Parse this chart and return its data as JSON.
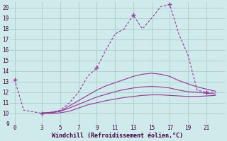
{
  "xlabel": "Windchill (Refroidissement éolien,°C)",
  "bg_color": "#ceeaea",
  "grid_color": "#aacccc",
  "line_color": "#993399",
  "xlim": [
    -0.5,
    23
  ],
  "ylim": [
    9,
    20.5
  ],
  "xticks": [
    0,
    3,
    5,
    7,
    9,
    11,
    13,
    15,
    17,
    19,
    21
  ],
  "yticks": [
    9,
    10,
    11,
    12,
    13,
    14,
    15,
    16,
    17,
    18,
    19,
    20
  ],
  "line1_x": [
    0,
    1,
    3,
    4,
    5,
    6,
    7,
    8,
    9,
    10,
    11,
    12,
    13,
    14,
    15,
    16,
    17,
    18,
    19,
    20,
    21,
    22
  ],
  "line1_y": [
    13.2,
    10.3,
    10.0,
    10.1,
    10.3,
    11.0,
    12.0,
    13.5,
    14.3,
    16.0,
    17.5,
    18.0,
    19.3,
    18.0,
    19.0,
    20.1,
    20.3,
    17.5,
    15.5,
    12.2,
    12.0,
    12.0
  ],
  "line1_markers_x": [
    0,
    3,
    9,
    13,
    17,
    21
  ],
  "line1_markers_y": [
    13.2,
    10.0,
    14.3,
    19.3,
    20.3,
    12.0
  ],
  "line2_x": [
    3,
    4,
    5,
    6,
    7,
    8,
    9,
    10,
    11,
    12,
    13,
    14,
    15,
    16,
    17,
    18,
    19,
    20,
    21,
    22
  ],
  "line2_y": [
    10.0,
    10.05,
    10.2,
    10.7,
    11.2,
    11.7,
    12.2,
    12.6,
    12.9,
    13.2,
    13.5,
    13.7,
    13.8,
    13.7,
    13.5,
    13.1,
    12.8,
    12.5,
    12.3,
    12.1
  ],
  "line3_x": [
    3,
    4,
    5,
    6,
    7,
    8,
    9,
    10,
    11,
    12,
    13,
    14,
    15,
    16,
    17,
    18,
    19,
    20,
    21,
    22
  ],
  "line3_y": [
    10.0,
    10.0,
    10.05,
    10.2,
    10.5,
    10.8,
    11.0,
    11.2,
    11.35,
    11.5,
    11.6,
    11.7,
    11.75,
    11.75,
    11.7,
    11.65,
    11.6,
    11.6,
    11.65,
    11.7
  ],
  "line4_x": [
    3,
    4,
    5,
    6,
    7,
    8,
    9,
    10,
    11,
    12,
    13,
    14,
    15,
    16,
    17,
    18,
    19,
    20,
    21,
    22
  ],
  "line4_y": [
    10.05,
    10.1,
    10.2,
    10.5,
    10.85,
    11.2,
    11.55,
    11.8,
    12.05,
    12.25,
    12.4,
    12.5,
    12.55,
    12.5,
    12.4,
    12.2,
    12.05,
    12.0,
    11.9,
    11.85
  ]
}
